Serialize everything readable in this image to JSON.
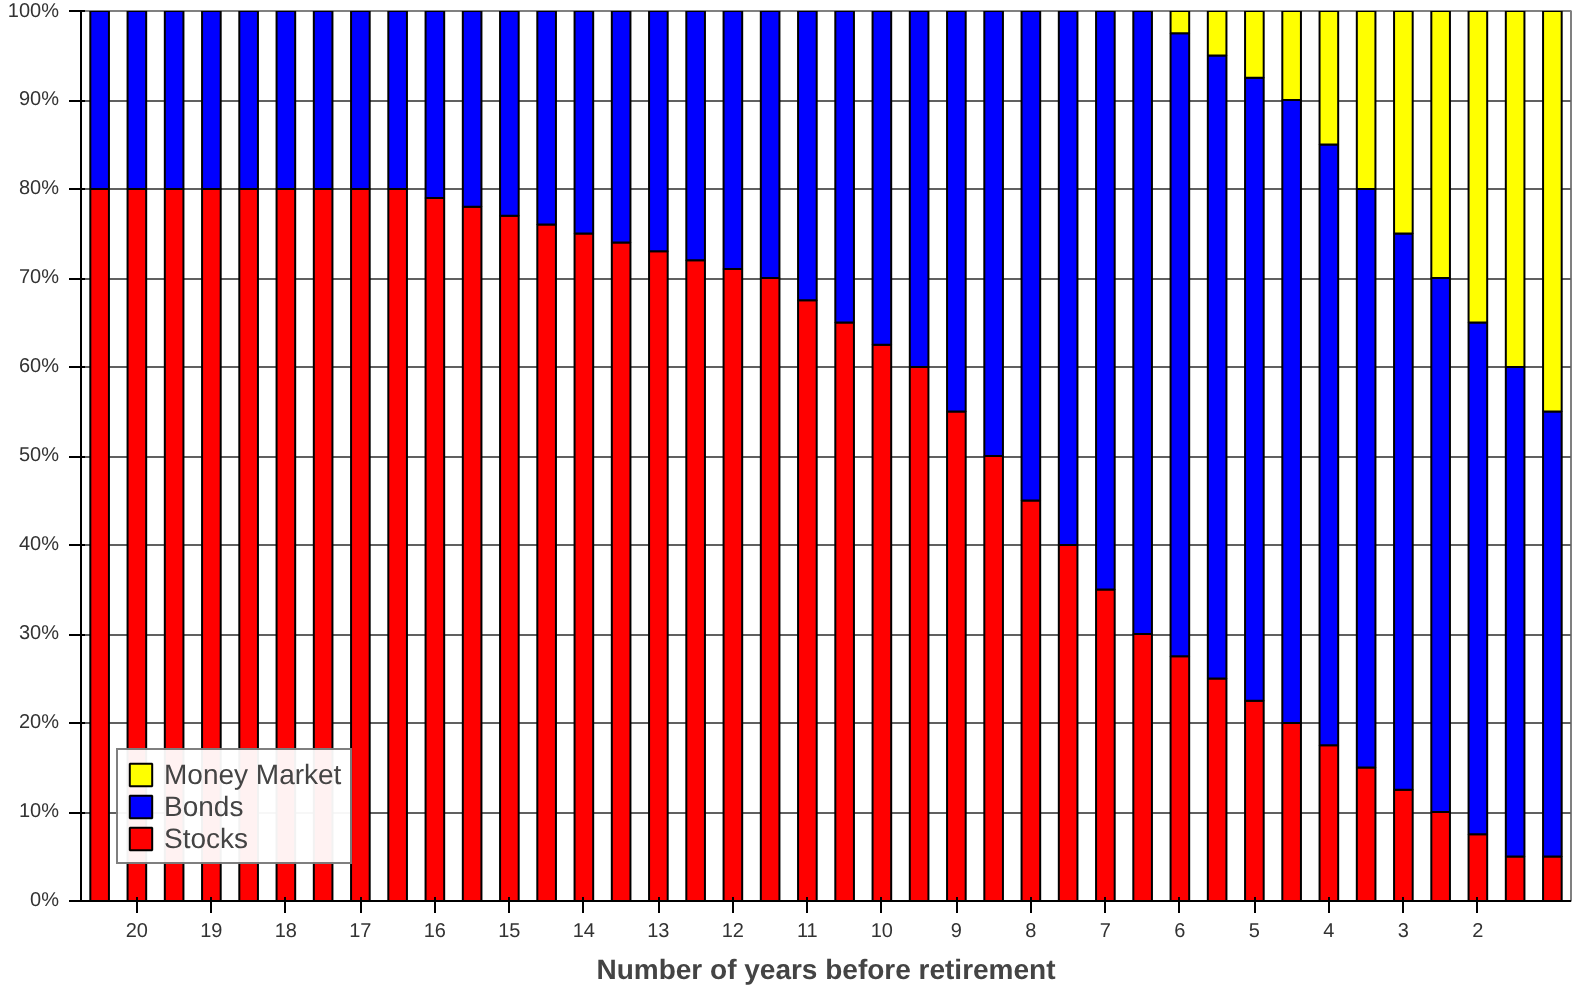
{
  "chart_data": {
    "type": "bar",
    "stacked": true,
    "xlabel": "Number of years before retirement",
    "categories": [
      null,
      "20",
      null,
      "19",
      null,
      "18",
      null,
      "17",
      null,
      "16",
      null,
      "15",
      null,
      "14",
      null,
      "13",
      null,
      "12",
      null,
      "11",
      null,
      "10",
      null,
      "9",
      null,
      "8",
      null,
      "7",
      null,
      "6",
      null,
      "5",
      null,
      "4",
      null,
      "3",
      null,
      "2",
      null,
      null
    ],
    "series": [
      {
        "name": "Stocks",
        "color": "#ff0000",
        "values": [
          80,
          80,
          80,
          80,
          80,
          80,
          80,
          80,
          80,
          79,
          78,
          77,
          76,
          75,
          74,
          73,
          72,
          71,
          70,
          67.5,
          65,
          62.5,
          60,
          55,
          50,
          45,
          40,
          35,
          30,
          27.5,
          25,
          22.5,
          20,
          17.5,
          15,
          12.5,
          10,
          7.5,
          5,
          5
        ]
      },
      {
        "name": "Bonds",
        "color": "#0000ff",
        "values": [
          20,
          20,
          20,
          20,
          20,
          20,
          20,
          20,
          20,
          21,
          22,
          23,
          24,
          25,
          26,
          27,
          28,
          29,
          30,
          32.5,
          35,
          37.5,
          40,
          45,
          50,
          55,
          60,
          65,
          70,
          70,
          70,
          70,
          70,
          67.5,
          65,
          62.5,
          60,
          57.5,
          55,
          50
        ]
      },
      {
        "name": "Money Market",
        "color": "#ffff00",
        "values": [
          null,
          null,
          null,
          null,
          null,
          null,
          null,
          null,
          null,
          null,
          null,
          null,
          null,
          null,
          null,
          null,
          null,
          null,
          null,
          null,
          null,
          null,
          null,
          null,
          null,
          null,
          null,
          null,
          null,
          2.5,
          5,
          7.5,
          10,
          15,
          20,
          25,
          30,
          35,
          40,
          45
        ]
      }
    ],
    "ylim": [
      0,
      100
    ],
    "yticks": [
      {
        "value": 0,
        "label": "0%"
      },
      {
        "value": 10,
        "label": "10%"
      },
      {
        "value": 20,
        "label": "20%"
      },
      {
        "value": 30,
        "label": "30%"
      },
      {
        "value": 40,
        "label": "40%"
      },
      {
        "value": 50,
        "label": "50%"
      },
      {
        "value": 60,
        "label": "60%"
      },
      {
        "value": 70,
        "label": "70%"
      },
      {
        "value": 80,
        "label": "80%"
      },
      {
        "value": 90,
        "label": "90%"
      },
      {
        "value": 100,
        "label": "100%"
      }
    ],
    "grid": "y",
    "legend": "bottom left"
  }
}
